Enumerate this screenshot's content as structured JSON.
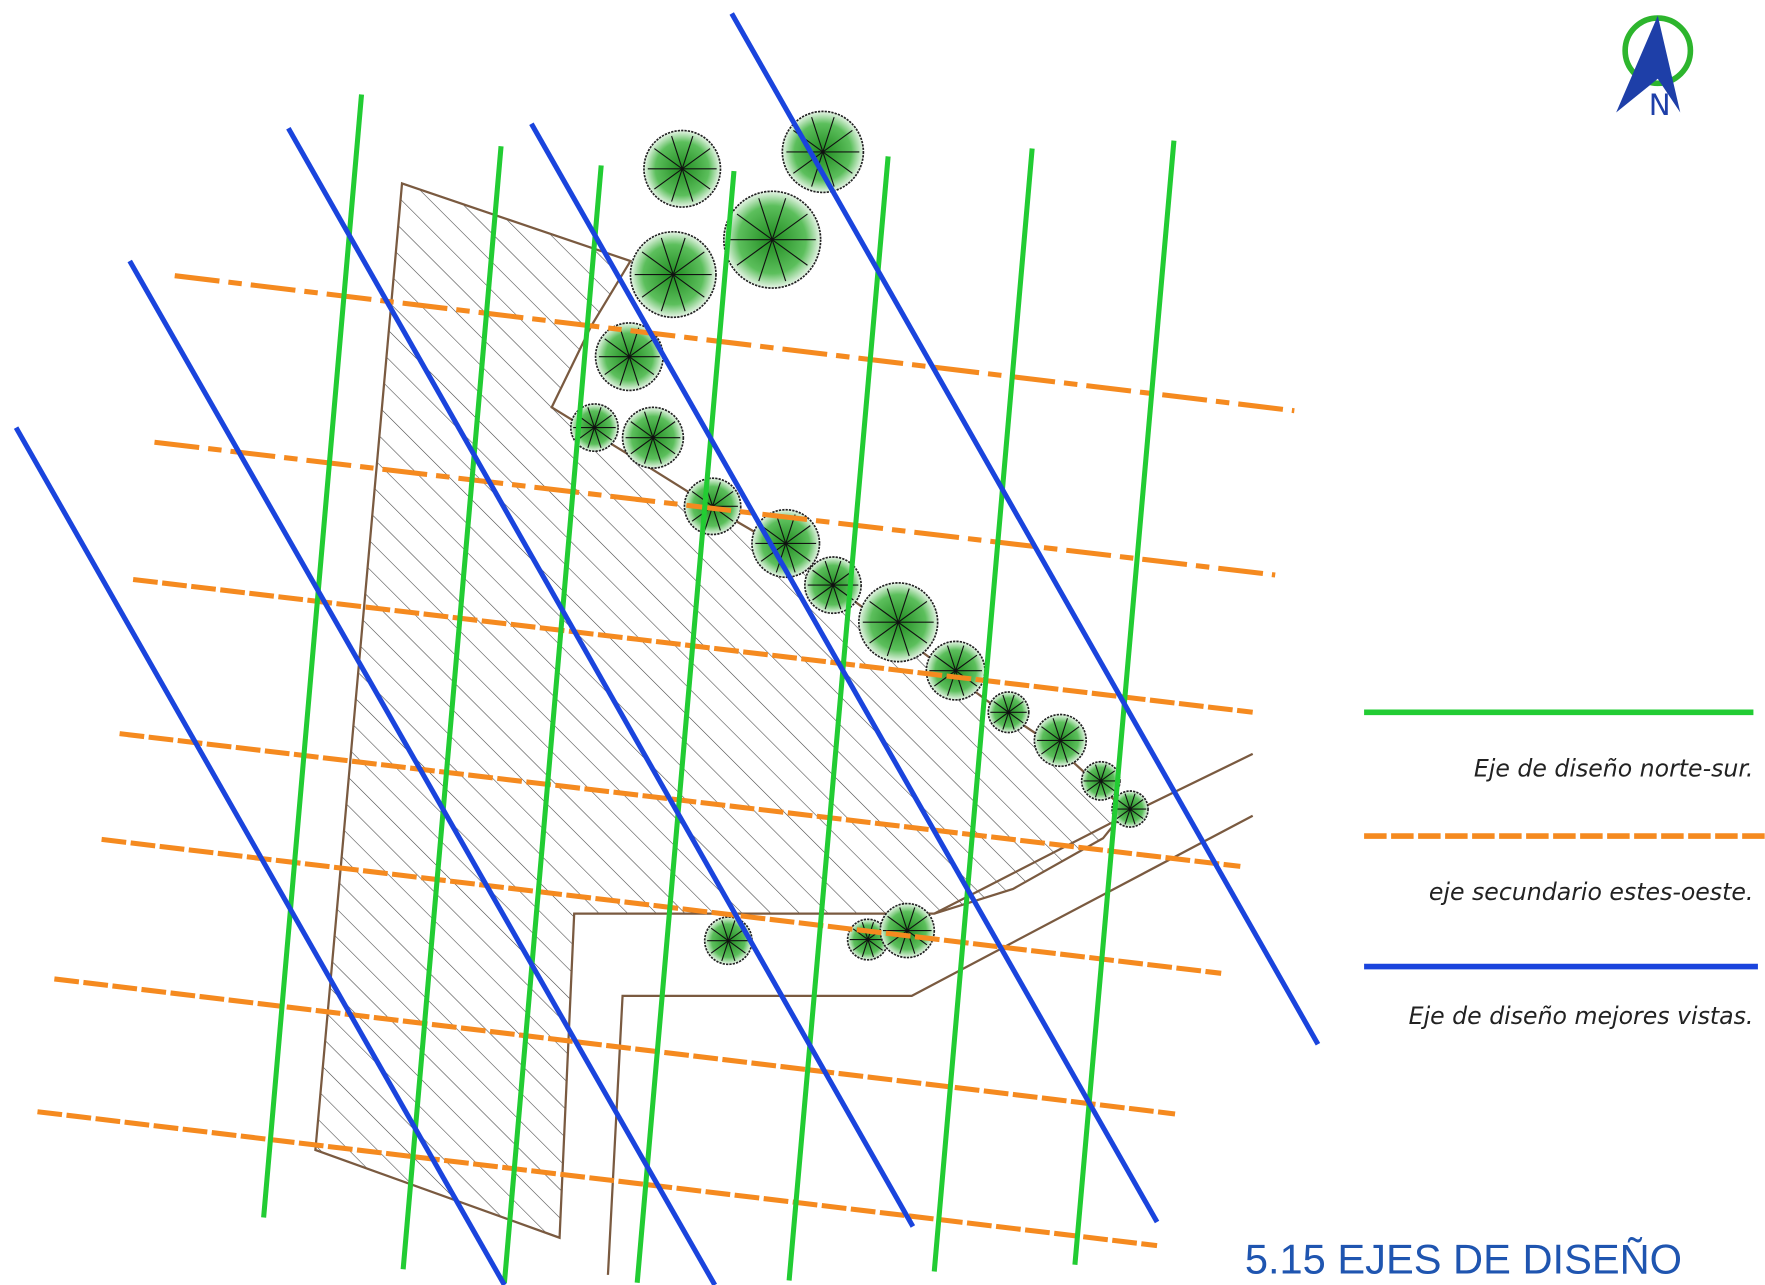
{
  "compass": {
    "label": "N"
  },
  "legend": [
    {
      "label": "Eje de diseño norte-sur."
    },
    {
      "label": "eje secundario estes-oeste."
    },
    {
      "label": "Eje de diseño mejores vistas."
    }
  ],
  "title": "5.15  EJES DE DISEÑO"
}
